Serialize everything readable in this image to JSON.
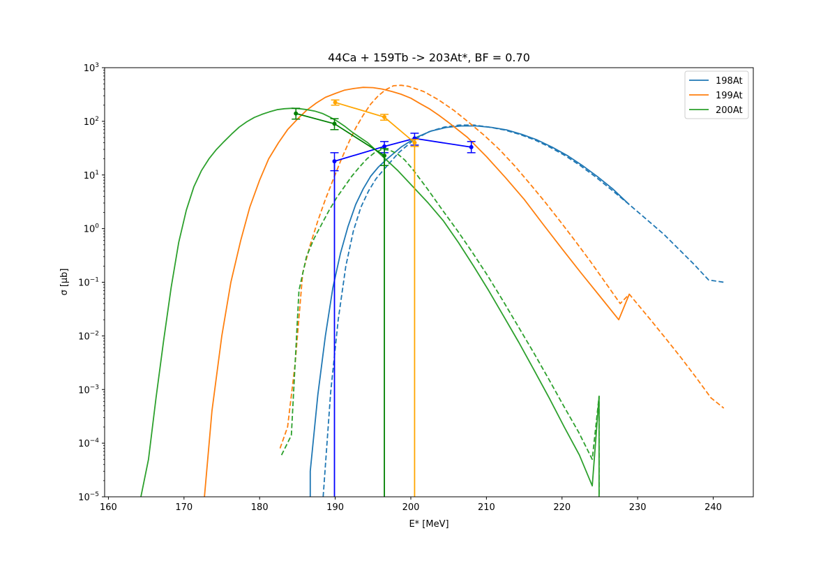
{
  "chart_data": {
    "type": "line",
    "title": "44Ca + 159Tb -> 203At*, BF = 0.70",
    "xlabel": "E* [MeV]",
    "ylabel": "σ [μb]",
    "xlim": [
      159.5,
      245.3
    ],
    "ylim": [
      1e-05,
      1000
    ],
    "yscale": "log",
    "grid": false,
    "legend_position": "top-right",
    "x_ticks": [
      160,
      170,
      180,
      190,
      200,
      210,
      220,
      230,
      240
    ],
    "y_ticks": [
      {
        "value": 1e-05,
        "base": "10",
        "exp": "−5"
      },
      {
        "value": 0.0001,
        "base": "10",
        "exp": "−4"
      },
      {
        "value": 0.001,
        "base": "10",
        "exp": "−3"
      },
      {
        "value": 0.01,
        "base": "10",
        "exp": "−2"
      },
      {
        "value": 0.1,
        "base": "10",
        "exp": "−1"
      },
      {
        "value": 1,
        "base": "10",
        "exp": "0"
      },
      {
        "value": 10,
        "base": "10",
        "exp": "1"
      },
      {
        "value": 100,
        "base": "10",
        "exp": "2"
      },
      {
        "value": 1000,
        "base": "10",
        "exp": "3"
      }
    ],
    "legend": [
      {
        "label": "198At",
        "color": "#1f77b4"
      },
      {
        "label": "199At",
        "color": "#ff7f0e"
      },
      {
        "label": "200At",
        "color": "#2ca02c"
      }
    ],
    "curves": [
      {
        "name": "198At",
        "color": "#1f77b4",
        "dash": false,
        "drop_to_floor": false,
        "x": [
          186.7,
          186.7,
          187.7,
          188.7,
          189.7,
          190.7,
          191.7,
          192.7,
          193.7,
          194.7,
          195.7,
          196.7,
          198.7,
          200.7,
          202.7,
          204.7,
          206.7,
          208.7,
          210.7,
          212.7,
          214.7,
          216.7,
          218.7,
          220.7,
          222.7,
          224.7,
          226.7,
          228.9
        ],
        "y": [
          1e-05,
          3e-05,
          0.0008,
          0.01,
          0.08,
          0.35,
          1.1,
          2.8,
          5.5,
          9.5,
          14,
          19,
          33,
          50,
          66,
          77,
          82,
          82,
          77,
          69,
          57,
          45,
          33,
          23,
          15,
          9.3,
          5.5,
          2.8
        ]
      },
      {
        "name": "198At",
        "color": "#1f77b4",
        "dash": true,
        "drop_to_floor": false,
        "x": [
          188.4,
          189.4,
          190.4,
          191.4,
          192.4,
          193.4,
          194.4,
          195.4,
          196.4,
          198.4,
          200.4,
          202.4,
          204.4,
          206.4,
          208.4,
          210.4,
          212.4,
          214.4,
          216.4,
          218.4,
          220.4,
          222.4,
          224.4,
          226.4,
          228.9,
          231.4,
          233.4,
          235.4,
          237.4,
          239.4,
          241.4
        ],
        "y": [
          1e-05,
          0.0009,
          0.02,
          0.2,
          0.9,
          2.5,
          5,
          8.5,
          12.5,
          26,
          45,
          64,
          78,
          85,
          85,
          78,
          69,
          57,
          45,
          33,
          23,
          15,
          9.3,
          5.5,
          2.8,
          1.4,
          0.8,
          0.42,
          0.22,
          0.11,
          0.1
        ]
      },
      {
        "name": "199At",
        "color": "#ff7f0e",
        "dash": false,
        "drop_to_floor": false,
        "x": [
          172.7,
          173.7,
          175.0,
          176.2,
          177.5,
          178.7,
          180.0,
          181.2,
          182.5,
          183.7,
          185.0,
          186.2,
          187.5,
          188.7,
          190.0,
          191.2,
          192.5,
          193.7,
          195.0,
          196.2,
          197.5,
          198.7,
          200.0,
          201.2,
          202.5,
          203.7,
          205.0,
          207.5,
          210.0,
          212.5,
          215.0,
          217.5,
          220.0,
          222.5,
          225.0,
          227.5,
          228.9
        ],
        "y": [
          1e-05,
          0.0004,
          0.01,
          0.1,
          0.6,
          2.5,
          8,
          20,
          40,
          70,
          110,
          160,
          220,
          280,
          330,
          380,
          410,
          430,
          425,
          400,
          360,
          320,
          270,
          215,
          170,
          130,
          95,
          50,
          22,
          9,
          3.5,
          1.2,
          0.42,
          0.15,
          0.055,
          0.02,
          0.06
        ]
      },
      {
        "name": "199At",
        "color": "#ff7f0e",
        "dash": true,
        "drop_to_floor": false,
        "x": [
          182.7,
          183.7,
          184.7,
          185.7,
          186.7,
          187.7,
          188.7,
          189.7,
          190.7,
          191.7,
          192.7,
          193.7,
          194.7,
          195.7,
          196.7,
          197.7,
          198.7,
          199.7,
          201.7,
          203.7,
          205.7,
          207.7,
          209.7,
          211.7,
          213.7,
          215.7,
          217.7,
          219.7,
          221.7,
          223.7,
          225.7,
          227.7,
          228.9,
          231.7,
          233.7,
          235.7,
          237.7,
          239.7,
          241.4
        ],
        "y": [
          8e-05,
          0.0002,
          0.003,
          0.15,
          0.5,
          1.4,
          3.5,
          8,
          18,
          38,
          75,
          130,
          210,
          300,
          390,
          460,
          470,
          450,
          360,
          250,
          160,
          95,
          55,
          30,
          15,
          7,
          3.2,
          1.4,
          0.6,
          0.25,
          0.1,
          0.04,
          0.06,
          0.02,
          0.009,
          0.004,
          0.0017,
          0.0007,
          0.00045
        ]
      },
      {
        "name": "200At",
        "color": "#2ca02c",
        "dash": false,
        "drop_to_floor": true,
        "x": [
          164.3,
          165.3,
          166.3,
          167.3,
          168.3,
          169.3,
          170.3,
          171.3,
          172.3,
          173.3,
          174.3,
          175.3,
          176.3,
          177.3,
          178.3,
          179.3,
          180.3,
          181.3,
          182.3,
          183.3,
          184.3,
          185.3,
          186.3,
          187.3,
          188.3,
          189.3,
          190.3,
          191.3,
          192.3,
          194.3,
          196.3,
          198.3,
          200.3,
          202.3,
          204.3,
          206.3,
          208.3,
          210.3,
          212.3,
          214.3,
          216.3,
          218.3,
          220.3,
          222.3,
          224.0,
          224.9
        ],
        "y": [
          1e-05,
          5e-05,
          0.0007,
          0.008,
          0.08,
          0.55,
          2.2,
          6,
          12,
          20,
          30,
          42,
          58,
          78,
          98,
          118,
          135,
          150,
          165,
          172,
          175,
          172,
          165,
          155,
          140,
          120,
          100,
          80,
          62,
          40,
          22,
          12,
          6,
          3,
          1.4,
          0.55,
          0.2,
          0.07,
          0.023,
          0.0075,
          0.0023,
          0.0007,
          0.0002,
          6e-05,
          1.6e-05,
          0.00075
        ]
      },
      {
        "name": "200At",
        "color": "#2ca02c",
        "dash": true,
        "drop_to_floor": true,
        "x": [
          182.9,
          184.2,
          185.2,
          186.2,
          187.2,
          188.2,
          189.2,
          190.2,
          191.2,
          192.2,
          193.2,
          194.2,
          195.2,
          196.2,
          197.2,
          198.2,
          199.2,
          200.2,
          202.2,
          204.2,
          206.2,
          208.2,
          210.2,
          212.2,
          214.2,
          216.2,
          218.2,
          220.2,
          222.2,
          224.0,
          224.9
        ],
        "y": [
          6e-05,
          0.00014,
          0.07,
          0.3,
          0.65,
          1.2,
          2.2,
          3.8,
          6,
          9.5,
          14,
          20,
          26,
          30,
          29,
          25,
          19,
          13,
          5.5,
          2.2,
          0.9,
          0.35,
          0.13,
          0.045,
          0.015,
          0.005,
          0.0016,
          0.0005,
          0.00016,
          5e-05,
          0.00075
        ]
      }
    ],
    "measured": [
      {
        "name": "198At",
        "color": "#0000ff",
        "x": [
          189.9,
          196.5,
          200.5,
          208.0
        ],
        "y": [
          18,
          34,
          48,
          33
        ],
        "err_low": [
          6,
          8,
          12,
          7
        ],
        "err_high": [
          8,
          8,
          12,
          9
        ],
        "drop_x": 189.9
      },
      {
        "name": "199At",
        "color": "#ffa500",
        "x": [
          190.0,
          196.5,
          200.5
        ],
        "y": [
          225,
          120,
          40
        ],
        "err_low": [
          25,
          15,
          6
        ],
        "err_high": [
          25,
          15,
          6
        ],
        "drop_x": 200.5
      },
      {
        "name": "200At",
        "color": "#008000",
        "x": [
          184.8,
          189.9,
          196.5
        ],
        "y": [
          140,
          90,
          23
        ],
        "err_low": [
          30,
          20,
          8
        ],
        "err_high": [
          35,
          22,
          8
        ],
        "drop_x": 196.5
      }
    ]
  }
}
